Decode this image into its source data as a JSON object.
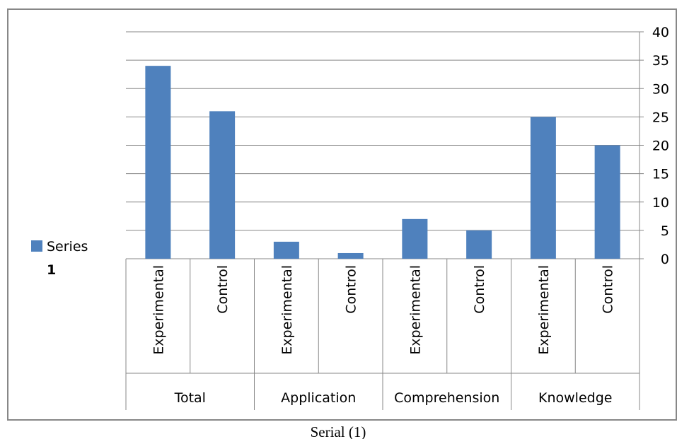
{
  "caption": "Serial (1)",
  "chart_data": {
    "type": "bar",
    "categories": [
      "Experimental",
      "Control",
      "Experimental",
      "Control",
      "Experimental",
      "Control",
      "Experimental",
      "Control"
    ],
    "groups": [
      {
        "label": "Total",
        "span": 2
      },
      {
        "label": "Application",
        "span": 2
      },
      {
        "label": "Comprehension",
        "span": 2
      },
      {
        "label": "Knowledge",
        "span": 2
      }
    ],
    "series": [
      {
        "name": "Series 1",
        "values": [
          34,
          26,
          3,
          1,
          7,
          5,
          25,
          20
        ],
        "color": "#4f81bd"
      }
    ],
    "y_ticks": [
      "0",
      "5",
      "10",
      "15",
      "20",
      "25",
      "30",
      "35",
      "40"
    ],
    "ylim": [
      0,
      40
    ],
    "y_axis_side": "right",
    "grid": true,
    "legend": {
      "position": "left",
      "line1": "Series",
      "line2": "1"
    }
  }
}
